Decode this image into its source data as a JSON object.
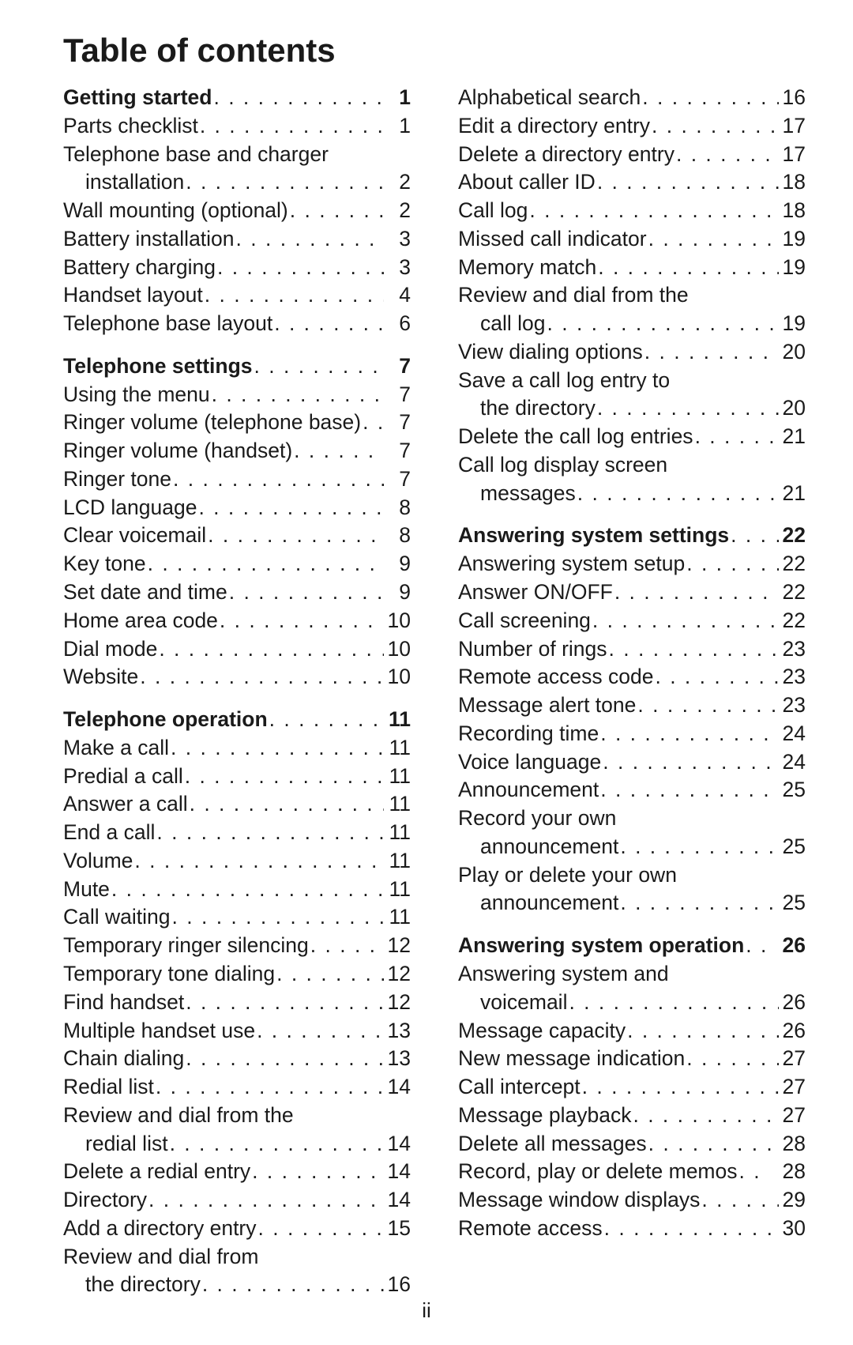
{
  "title": "Table of contents",
  "pageNumber": "ii",
  "leaderText": " . . . . . . . . . . . . . . . . . . . . . . . . . . . . . . . . . . . . . . . . . . . . . . . . . . . . . . . . . . . .",
  "colors": {
    "text": "#1a1a1a",
    "background": "#ffffff"
  },
  "typography": {
    "title_fontsize": 42,
    "body_fontsize": 26.5,
    "font_family": "Arial, Helvetica, sans-serif"
  },
  "leftColumn": [
    {
      "entries": [
        {
          "label": "Getting started",
          "page": "1",
          "heading": true
        },
        {
          "label": "Parts checklist",
          "page": "1"
        },
        {
          "label": "Telephone base and charger",
          "cont": "installation",
          "page": "2"
        },
        {
          "label": "Wall mounting (optional)",
          "page": "2"
        },
        {
          "label": "Battery installation",
          "page": "3"
        },
        {
          "label": "Battery charging",
          "page": "3"
        },
        {
          "label": "Handset layout",
          "page": "4"
        },
        {
          "label": "Telephone base layout",
          "page": "6"
        }
      ]
    },
    {
      "entries": [
        {
          "label": "Telephone settings",
          "page": "7",
          "heading": true
        },
        {
          "label": "Using the menu",
          "page": "7"
        },
        {
          "label": "Ringer volume (telephone base)",
          "page": "7"
        },
        {
          "label": "Ringer volume (handset)",
          "page": "7"
        },
        {
          "label": "Ringer tone",
          "page": "7"
        },
        {
          "label": "LCD language",
          "page": "8"
        },
        {
          "label": "Clear voicemail",
          "page": "8"
        },
        {
          "label": "Key tone",
          "page": "9"
        },
        {
          "label": "Set date and time",
          "page": "9"
        },
        {
          "label": "Home area code",
          "page": "10"
        },
        {
          "label": "Dial mode",
          "page": "10"
        },
        {
          "label": "Website",
          "page": "10"
        }
      ]
    },
    {
      "entries": [
        {
          "label": "Telephone operation",
          "page": "11",
          "heading": true
        },
        {
          "label": "Make a call",
          "page": "11"
        },
        {
          "label": "Predial a call",
          "page": "11"
        },
        {
          "label": "Answer a call",
          "page": "11"
        },
        {
          "label": "End a call",
          "page": "11"
        },
        {
          "label": "Volume",
          "page": "11"
        },
        {
          "label": "Mute",
          "page": "11"
        },
        {
          "label": "Call waiting",
          "page": "11"
        },
        {
          "label": "Temporary ringer silencing",
          "page": "12"
        },
        {
          "label": "Temporary tone dialing",
          "page": "12"
        },
        {
          "label": "Find handset",
          "page": "12"
        },
        {
          "label": "Multiple handset use",
          "page": "13"
        },
        {
          "label": "Chain dialing",
          "page": "13"
        },
        {
          "label": "Redial list",
          "page": "14"
        },
        {
          "label": "Review and dial from the",
          "cont": "redial list",
          "page": "14"
        },
        {
          "label": "Delete a redial entry",
          "page": "14"
        },
        {
          "label": "Directory",
          "page": "14"
        },
        {
          "label": "Add a directory entry",
          "page": "15"
        },
        {
          "label": "Review and dial from",
          "cont": "the directory",
          "page": "16"
        }
      ]
    }
  ],
  "rightColumn": [
    {
      "entries": [
        {
          "label": "Alphabetical search",
          "page": "16"
        },
        {
          "label": "Edit a directory entry",
          "page": "17"
        },
        {
          "label": "Delete a directory entry",
          "page": "17"
        },
        {
          "label": "About caller ID",
          "page": "18"
        },
        {
          "label": "Call log",
          "page": "18"
        },
        {
          "label": "Missed call indicator",
          "page": "19"
        },
        {
          "label": "Memory match",
          "page": "19"
        },
        {
          "label": "Review and dial from the",
          "cont": "call log",
          "page": "19"
        },
        {
          "label": "View dialing options",
          "page": "20"
        },
        {
          "label": "Save a call log entry to",
          "cont": "the directory",
          "page": "20"
        },
        {
          "label": "Delete the call log entries",
          "page": "21"
        },
        {
          "label": "Call log display screen",
          "cont": "messages",
          "page": "21"
        }
      ]
    },
    {
      "entries": [
        {
          "label": "Answering system settings",
          "page": "22",
          "heading": true
        },
        {
          "label": "Answering system setup",
          "page": "22"
        },
        {
          "label": "Answer ON/OFF",
          "page": "22"
        },
        {
          "label": "Call screening",
          "page": "22"
        },
        {
          "label": "Number of rings",
          "page": "23"
        },
        {
          "label": "Remote access code",
          "page": "23"
        },
        {
          "label": "Message alert tone",
          "page": "23"
        },
        {
          "label": "Recording time",
          "page": "24"
        },
        {
          "label": "Voice language",
          "page": "24"
        },
        {
          "label": "Announcement",
          "page": "25"
        },
        {
          "label": "Record your own",
          "cont": "announcement",
          "page": "25"
        },
        {
          "label": "Play or delete your own",
          "cont": "announcement",
          "page": "25"
        }
      ]
    },
    {
      "entries": [
        {
          "label": "Answering system operation",
          "page": "26",
          "heading": true,
          "leader": " . . "
        },
        {
          "label": "Answering system and",
          "cont": "voicemail",
          "page": "26"
        },
        {
          "label": "Message capacity",
          "page": "26"
        },
        {
          "label": "New message indication",
          "page": "27"
        },
        {
          "label": "Call intercept",
          "page": "27"
        },
        {
          "label": "Message playback",
          "page": "27"
        },
        {
          "label": "Delete all messages",
          "page": "28"
        },
        {
          "label": "Record, play or delete memos",
          "page": "28",
          "leader": " . ."
        },
        {
          "label": "Message window displays",
          "page": "29"
        },
        {
          "label": "Remote access",
          "page": "30"
        }
      ]
    }
  ]
}
